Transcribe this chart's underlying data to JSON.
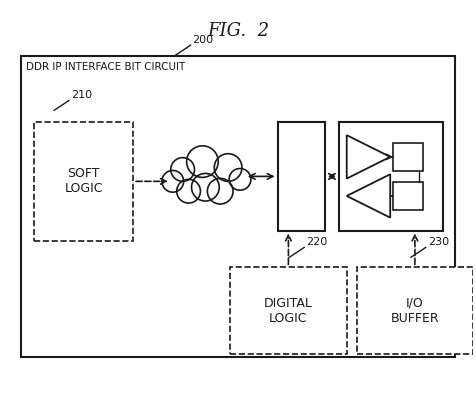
{
  "title": "FIG.  2",
  "ref_200": "200",
  "circuit_label": "DDR IP INTERFACE BIT CIRCUIT",
  "soft_logic_label": "SOFT\nLOGIC",
  "ref_210": "210",
  "digital_logic_label": "DIGITAL\nLOGIC",
  "ref_220": "220",
  "io_buffer_label": "I/O\nBUFFER",
  "ref_230": "230",
  "bg_color": "#ffffff",
  "line_color": "#1a1a1a",
  "fig_width": 4.76,
  "fig_height": 4.11
}
